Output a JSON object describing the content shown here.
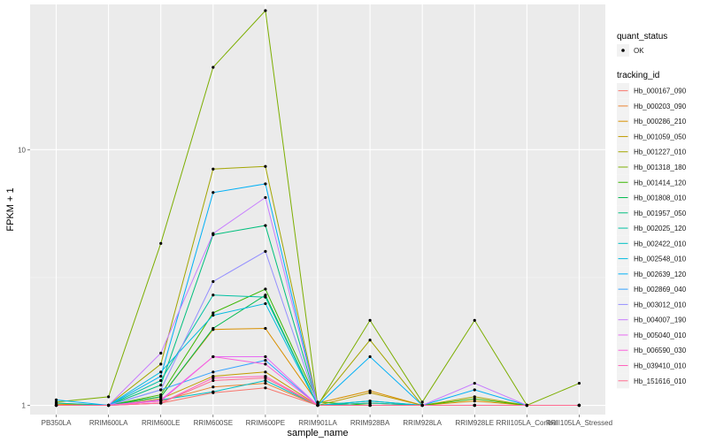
{
  "chart_data": {
    "type": "line",
    "xlabel": "sample_name",
    "ylabel": "FPKM + 1",
    "y_scale": "log10",
    "ylim": [
      0.92,
      37
    ],
    "y_ticks": [
      1,
      10
    ],
    "y_tick_labels": [
      "1",
      "10"
    ],
    "categories": [
      "PB350LA",
      "RRIM600LA",
      "RRIM600LE",
      "RRIM600SE",
      "RRIM600PE",
      "RRIM901LA",
      "RRIM928BA",
      "RRIM928LA",
      "RRIM928LE",
      "RRII105LA_Control",
      "RRII105LA_Stressed"
    ],
    "legend_status": {
      "title": "quant_status",
      "entries": [
        "OK"
      ]
    },
    "legend_title": "tracking_id",
    "series": [
      {
        "name": "Hb_000167_090",
        "color": "#F8766D",
        "values": [
          1.0,
          1.0,
          1.02,
          1.12,
          1.17,
          1.0,
          1.02,
          1.0,
          1.0,
          1.0,
          1.0
        ]
      },
      {
        "name": "Hb_000203_090",
        "color": "#EA8331",
        "values": [
          1.0,
          1.0,
          1.04,
          1.18,
          1.22,
          1.0,
          1.02,
          1.0,
          1.0,
          1.0,
          1.0
        ]
      },
      {
        "name": "Hb_000286_210",
        "color": "#D89000",
        "values": [
          1.01,
          1.0,
          1.08,
          1.98,
          2.0,
          1.02,
          1.14,
          1.0,
          1.04,
          1.0,
          1.0
        ]
      },
      {
        "name": "Hb_001059_050",
        "color": "#C09B00",
        "values": [
          1.0,
          1.0,
          1.06,
          1.3,
          1.35,
          1.0,
          1.12,
          1.0,
          1.0,
          1.0,
          1.0
        ]
      },
      {
        "name": "Hb_001227_010",
        "color": "#A3A500",
        "values": [
          1.02,
          1.0,
          1.45,
          8.4,
          8.6,
          1.01,
          1.8,
          1.0,
          1.08,
          1.0,
          1.0
        ]
      },
      {
        "name": "Hb_001318_180",
        "color": "#7CAE00",
        "values": [
          1.03,
          1.08,
          4.3,
          21.0,
          35.0,
          1.0,
          2.15,
          1.03,
          2.15,
          1.0,
          1.22
        ]
      },
      {
        "name": "Hb_001414_120",
        "color": "#39B600",
        "values": [
          1.0,
          1.0,
          1.1,
          2.3,
          2.85,
          1.03,
          1.0,
          1.0,
          1.06,
          1.0,
          1.0
        ]
      },
      {
        "name": "Hb_001808_010",
        "color": "#00BB4E",
        "values": [
          1.0,
          1.0,
          1.08,
          2.0,
          2.7,
          1.0,
          1.04,
          1.0,
          1.0,
          1.0,
          1.0
        ]
      },
      {
        "name": "Hb_001957_050",
        "color": "#00BF7D",
        "values": [
          1.0,
          1.0,
          1.2,
          4.65,
          5.05,
          1.0,
          1.0,
          1.0,
          1.0,
          1.0,
          1.0
        ]
      },
      {
        "name": "Hb_002025_120",
        "color": "#00C1A3",
        "values": [
          1.02,
          1.0,
          1.25,
          2.7,
          2.65,
          1.0,
          1.02,
          1.0,
          1.0,
          1.0,
          1.0
        ]
      },
      {
        "name": "Hb_002422_010",
        "color": "#00BFC4",
        "values": [
          1.0,
          1.0,
          1.05,
          1.13,
          1.25,
          1.0,
          1.0,
          1.0,
          1.0,
          1.0,
          1.0
        ]
      },
      {
        "name": "Hb_002548_010",
        "color": "#00BAE0",
        "values": [
          1.0,
          1.0,
          1.35,
          2.25,
          2.5,
          1.0,
          1.04,
          1.0,
          1.0,
          1.0,
          1.0
        ]
      },
      {
        "name": "Hb_002639_120",
        "color": "#00B0F6",
        "values": [
          1.05,
          1.0,
          1.3,
          6.8,
          7.35,
          1.0,
          1.55,
          1.0,
          1.15,
          1.0,
          1.0
        ]
      },
      {
        "name": "Hb_002869_040",
        "color": "#35A2FF",
        "values": [
          1.0,
          1.0,
          1.15,
          1.35,
          1.5,
          1.0,
          1.0,
          1.0,
          1.0,
          1.0,
          1.0
        ]
      },
      {
        "name": "Hb_003012_010",
        "color": "#9590FF",
        "values": [
          1.0,
          1.0,
          1.15,
          3.05,
          4.0,
          1.0,
          1.0,
          1.0,
          1.0,
          1.0,
          1.0
        ]
      },
      {
        "name": "Hb_004007_190",
        "color": "#C77CFF",
        "values": [
          1.0,
          1.0,
          1.6,
          4.7,
          6.5,
          1.0,
          1.0,
          1.0,
          1.22,
          1.0,
          1.0
        ]
      },
      {
        "name": "Hb_005040_010",
        "color": "#E76BF3",
        "values": [
          1.0,
          1.0,
          1.05,
          1.55,
          1.55,
          1.0,
          1.0,
          1.0,
          1.0,
          1.0,
          1.0
        ]
      },
      {
        "name": "Hb_006590_030",
        "color": "#FA62DB",
        "values": [
          1.0,
          1.0,
          1.04,
          1.55,
          1.45,
          1.0,
          1.0,
          1.0,
          1.0,
          1.0,
          1.0
        ]
      },
      {
        "name": "Hb_039410_010",
        "color": "#FF62BC",
        "values": [
          1.0,
          1.0,
          1.02,
          1.28,
          1.3,
          1.0,
          1.0,
          1.0,
          1.0,
          1.0,
          1.0
        ]
      },
      {
        "name": "Hb_151616_010",
        "color": "#FF6C91",
        "values": [
          1.0,
          1.0,
          1.02,
          1.25,
          1.28,
          1.0,
          1.0,
          1.0,
          1.0,
          1.0,
          1.0
        ]
      }
    ]
  }
}
